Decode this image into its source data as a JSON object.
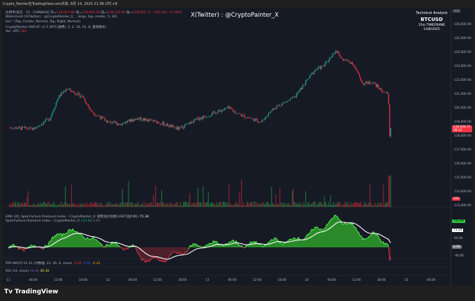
{
  "window_title": "Crypto_Painter在TradingView.com共享, 8月 14, 2025 21:06 UTC+8",
  "legend": {
    "symbol": "比特币/美元 · 15 · COINBASE",
    "open_label": "开=",
    "open": "118,921.98",
    "high_label": "高=",
    "high": "118,945.29",
    "low_label": "低=",
    "low": "118,115.92",
    "close_label": "收=",
    "close": "118,566.71",
    "change": "−355.28 (−0.30%)",
    "line2": "Watermark (X(Twitter) : @CryptoPainter_X_ , large, top, center, 5, 30)",
    "line3": "txo^ (Top, Center, Normal, Top, Right, Normal)",
    "line4": "CryptoPainter ASR-VC v1.5 (BTC(通用), 5, 2, 16, 10, 8, 震荡模式)",
    "vol_label": "Vol · BTC",
    "vol_value": "161"
  },
  "watermark": "X(Twitter) : @CryptoPainter_X",
  "info_box": {
    "line1": "Technical Analysis",
    "line2": "BTCUSD",
    "line3": "15m TIMEFRAME",
    "line4": "14/8/2025"
  },
  "price_axis": {
    "currency": "USD",
    "labels": [
      "126,000.00",
      "125,000.00",
      "124,000.00",
      "123,000.00",
      "122,000.00",
      "121,000.00",
      "120,000.00",
      "119,000.00",
      "118,000.00",
      "117,000.00",
      "116,000.00",
      "115,000.00",
      "114,000.00",
      "113,000.00"
    ],
    "last_price": "118,566.71",
    "countdown": "08:12",
    "volume_tag": "161"
  },
  "oscillator": {
    "ema_legend": "EMA (20, Spot-Furture Premium Index - CryptoPainter_X: 期现溢价指数(USDT溢价率))",
    "ema_value": "71.34",
    "index_legend": "Spot-Furture Premium Index - CryptoPainter_X",
    "index_value": "112.64",
    "index_value2": "0.00",
    "axis_labels": [
      "40.00",
      "-40.00"
    ],
    "tag_index": "112.64",
    "tag_ema": "71.34",
    "tag_zero": "0.00"
  },
  "macd": {
    "legend": "RTA MACD V2.31 (对数轴, 12, 26, 9, close)",
    "v1": "-0.20",
    "v2": "-0.61",
    "v3": "-0.42"
  },
  "rsi": {
    "legend": "RSI (14, close)",
    "v1": "16.66",
    "v2": "30.30"
  },
  "time_axis": [
    "11",
    "06:00",
    "12:00",
    "18:00",
    "12",
    "06:00",
    "12:00",
    "18:00",
    "13",
    "06:00",
    "12:00",
    "18:00",
    "14",
    "06:00",
    "12:00",
    "18:00",
    "15",
    "06:00"
  ],
  "price_path": [
    [
      "08-11 00:00",
      118600
    ],
    [
      "08-11 06:00",
      118500
    ],
    [
      "08-11 10:00",
      119250
    ],
    [
      "08-11 12:00",
      120750
    ],
    [
      "08-11 14:00",
      121400
    ],
    [
      "08-11 18:00",
      120800
    ],
    [
      "08-11 20:00",
      119750
    ],
    [
      "08-12 00:00",
      119000
    ],
    [
      "08-12 03:00",
      118850
    ],
    [
      "08-12 07:00",
      119250
    ],
    [
      "08-12 12:00",
      119000
    ],
    [
      "08-12 17:00",
      118500
    ],
    [
      "08-12 22:00",
      119250
    ],
    [
      "08-13 05:00",
      120000
    ],
    [
      "08-13 08:00",
      119500
    ],
    [
      "08-13 13:00",
      119000
    ],
    [
      "08-13 16:00",
      120000
    ],
    [
      "08-13 21:00",
      120750
    ],
    [
      "08-14 02:00",
      122750
    ],
    [
      "08-14 04:00",
      123000
    ],
    [
      "08-14 07:00",
      124150
    ],
    [
      "08-14 08:30",
      123500
    ],
    [
      "08-14 11:00",
      123250
    ],
    [
      "08-14 13:30",
      121750
    ],
    [
      "08-14 16:00",
      121850
    ],
    [
      "08-14 18:00",
      121250
    ],
    [
      "08-14 19:40",
      121000
    ],
    [
      "08-14 20:00",
      118000
    ],
    [
      "08-14 20:15",
      118566
    ]
  ],
  "colors": {
    "up": "#22ab94",
    "down": "#f23645",
    "background": "#161a25",
    "osc_up": "#2ecc40",
    "osc_down": "#f23645",
    "ema": "#ffffff"
  },
  "branding": "TradingView"
}
